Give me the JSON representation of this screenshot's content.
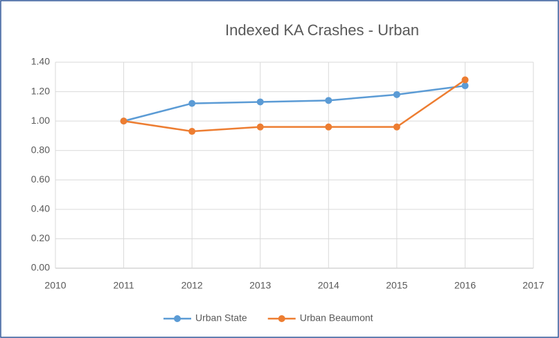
{
  "chart_data": {
    "type": "line",
    "title": "Indexed KA Crashes - Urban",
    "x": [
      2011,
      2012,
      2013,
      2014,
      2015,
      2016
    ],
    "series": [
      {
        "name": "Urban State",
        "color": "#5b9bd5",
        "values": [
          1.0,
          1.12,
          1.13,
          1.14,
          1.18,
          1.24
        ]
      },
      {
        "name": "Urban Beaumont",
        "color": "#ed7d31",
        "values": [
          1.0,
          0.93,
          0.96,
          0.96,
          0.96,
          1.28
        ]
      }
    ],
    "xlim": [
      2010,
      2017
    ],
    "xticks": [
      2010,
      2011,
      2012,
      2013,
      2014,
      2015,
      2016,
      2017
    ],
    "ylim": [
      0,
      1.4
    ],
    "yticks": [
      {
        "value": 0,
        "label": "0.00"
      },
      {
        "value": 0.2,
        "label": "0.20"
      },
      {
        "value": 0.4,
        "label": "0.40"
      },
      {
        "value": 0.6,
        "label": "0.60"
      },
      {
        "value": 0.8,
        "label": "0.80"
      },
      {
        "value": 1.0,
        "label": "1.00"
      },
      {
        "value": 1.2,
        "label": "1.20"
      },
      {
        "value": 1.4,
        "label": "1.40"
      }
    ],
    "grid": true,
    "legend": "bottom"
  }
}
